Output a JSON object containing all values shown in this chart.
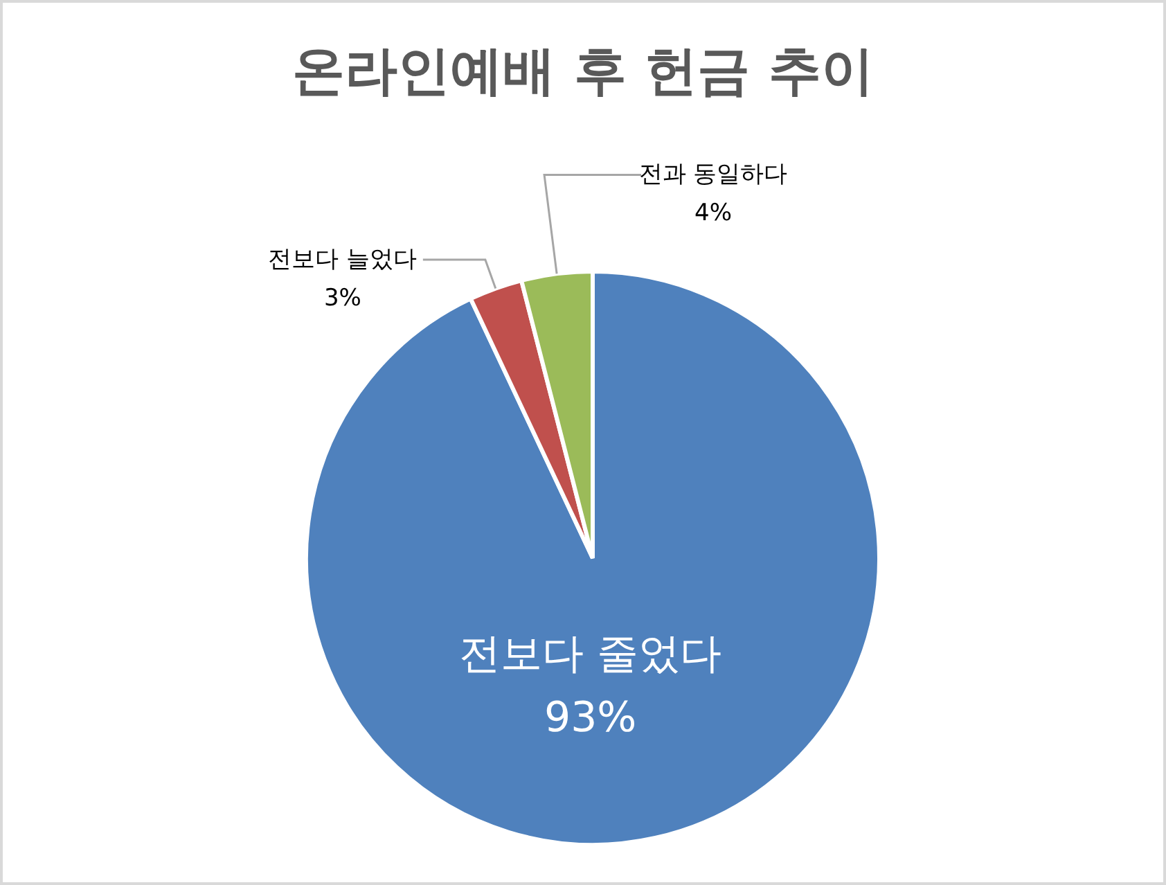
{
  "chart_data": {
    "type": "pie",
    "title": "온라인예배 후 헌금 추이",
    "categories": [
      "전보다 줄었다",
      "전보다 늘었다",
      "전과 동일하다"
    ],
    "values": [
      93,
      3,
      4
    ],
    "colors": [
      "#4f81bd",
      "#c0504d",
      "#9bbb59"
    ],
    "value_labels": [
      "93%",
      "3%",
      "4%"
    ],
    "legend": false
  }
}
